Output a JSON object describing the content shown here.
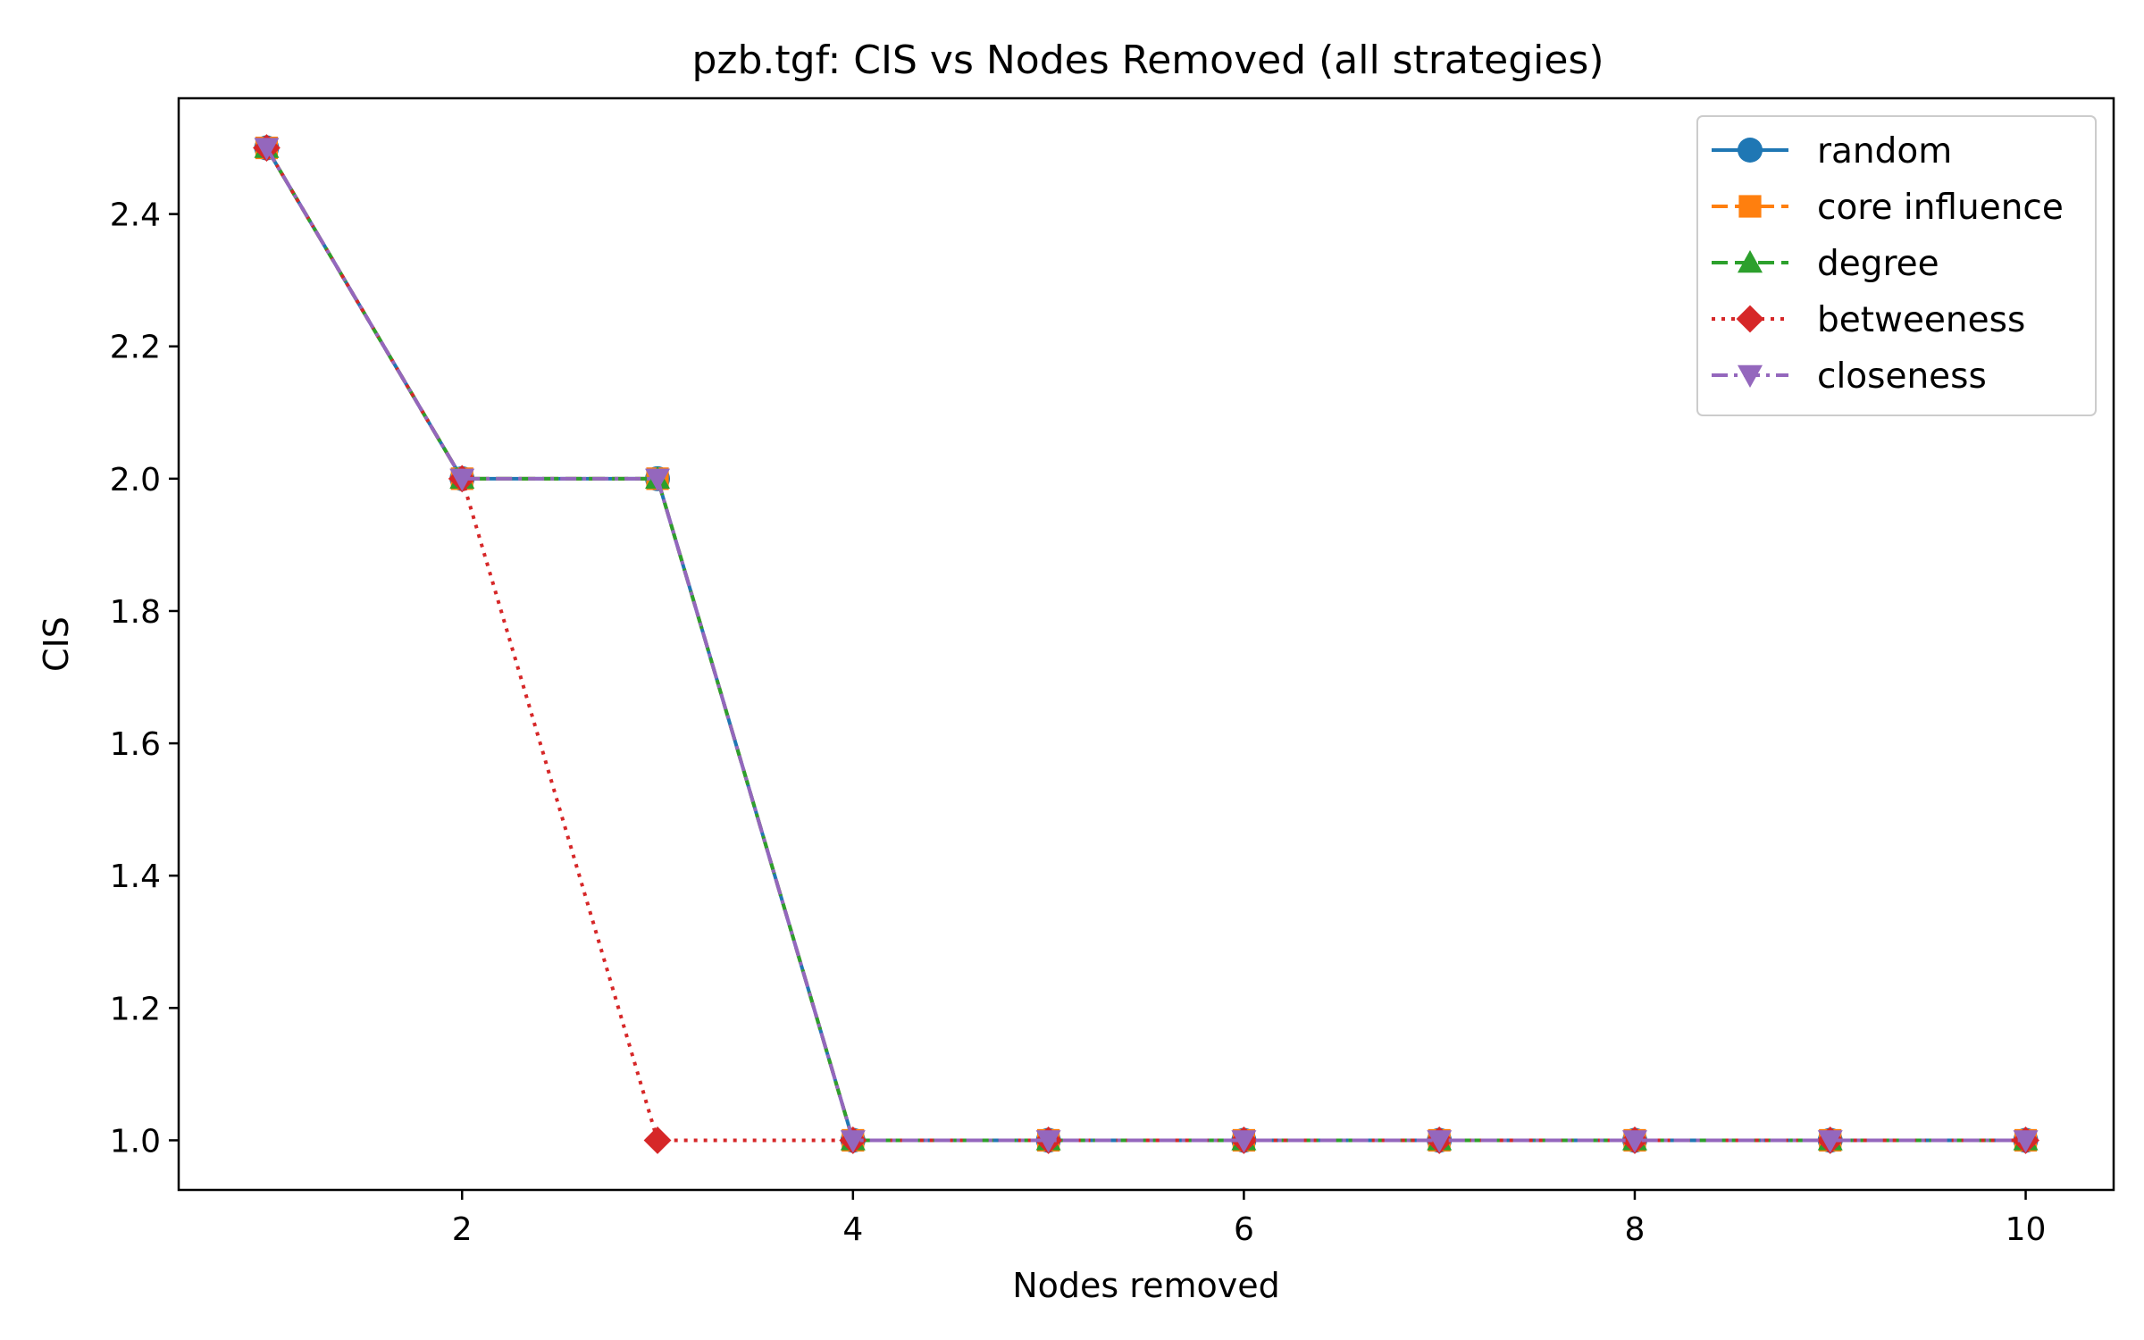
{
  "chart_data": {
    "type": "line",
    "title": "pzb.tgf: CIS vs Nodes Removed (all strategies)",
    "xlabel": "Nodes removed",
    "ylabel": "CIS",
    "xlim": [
      0.55,
      10.45
    ],
    "ylim": [
      0.925,
      2.575
    ],
    "xticks": [
      2,
      4,
      6,
      8,
      10
    ],
    "yticks": [
      1.0,
      1.2,
      1.4,
      1.6,
      1.8,
      2.0,
      2.2,
      2.4
    ],
    "x": [
      1,
      2,
      3,
      4,
      5,
      6,
      7,
      8,
      9,
      10
    ],
    "grid": false,
    "legend_position": "top-right",
    "series": [
      {
        "name": "random",
        "color": "#1f77b4",
        "dash": "solid",
        "marker": "circle",
        "values": [
          2.5,
          2.0,
          2.0,
          1.0,
          1.0,
          1.0,
          1.0,
          1.0,
          1.0,
          1.0
        ]
      },
      {
        "name": "core influence",
        "color": "#ff7f0e",
        "dash": "dashed",
        "marker": "square",
        "values": [
          2.5,
          2.0,
          2.0,
          1.0,
          1.0,
          1.0,
          1.0,
          1.0,
          1.0,
          1.0
        ]
      },
      {
        "name": "degree",
        "color": "#2ca02c",
        "dash": "dashed",
        "marker": "triangle-up",
        "values": [
          2.5,
          2.0,
          2.0,
          1.0,
          1.0,
          1.0,
          1.0,
          1.0,
          1.0,
          1.0
        ]
      },
      {
        "name": "betweeness",
        "color": "#d62728",
        "dash": "dotted",
        "marker": "diamond",
        "values": [
          2.5,
          2.0,
          1.0,
          1.0,
          1.0,
          1.0,
          1.0,
          1.0,
          1.0,
          1.0
        ]
      },
      {
        "name": "closeness",
        "color": "#9467bd",
        "dash": "dashdot",
        "marker": "triangle-down",
        "values": [
          2.5,
          2.0,
          2.0,
          1.0,
          1.0,
          1.0,
          1.0,
          1.0,
          1.0,
          1.0
        ]
      }
    ]
  }
}
